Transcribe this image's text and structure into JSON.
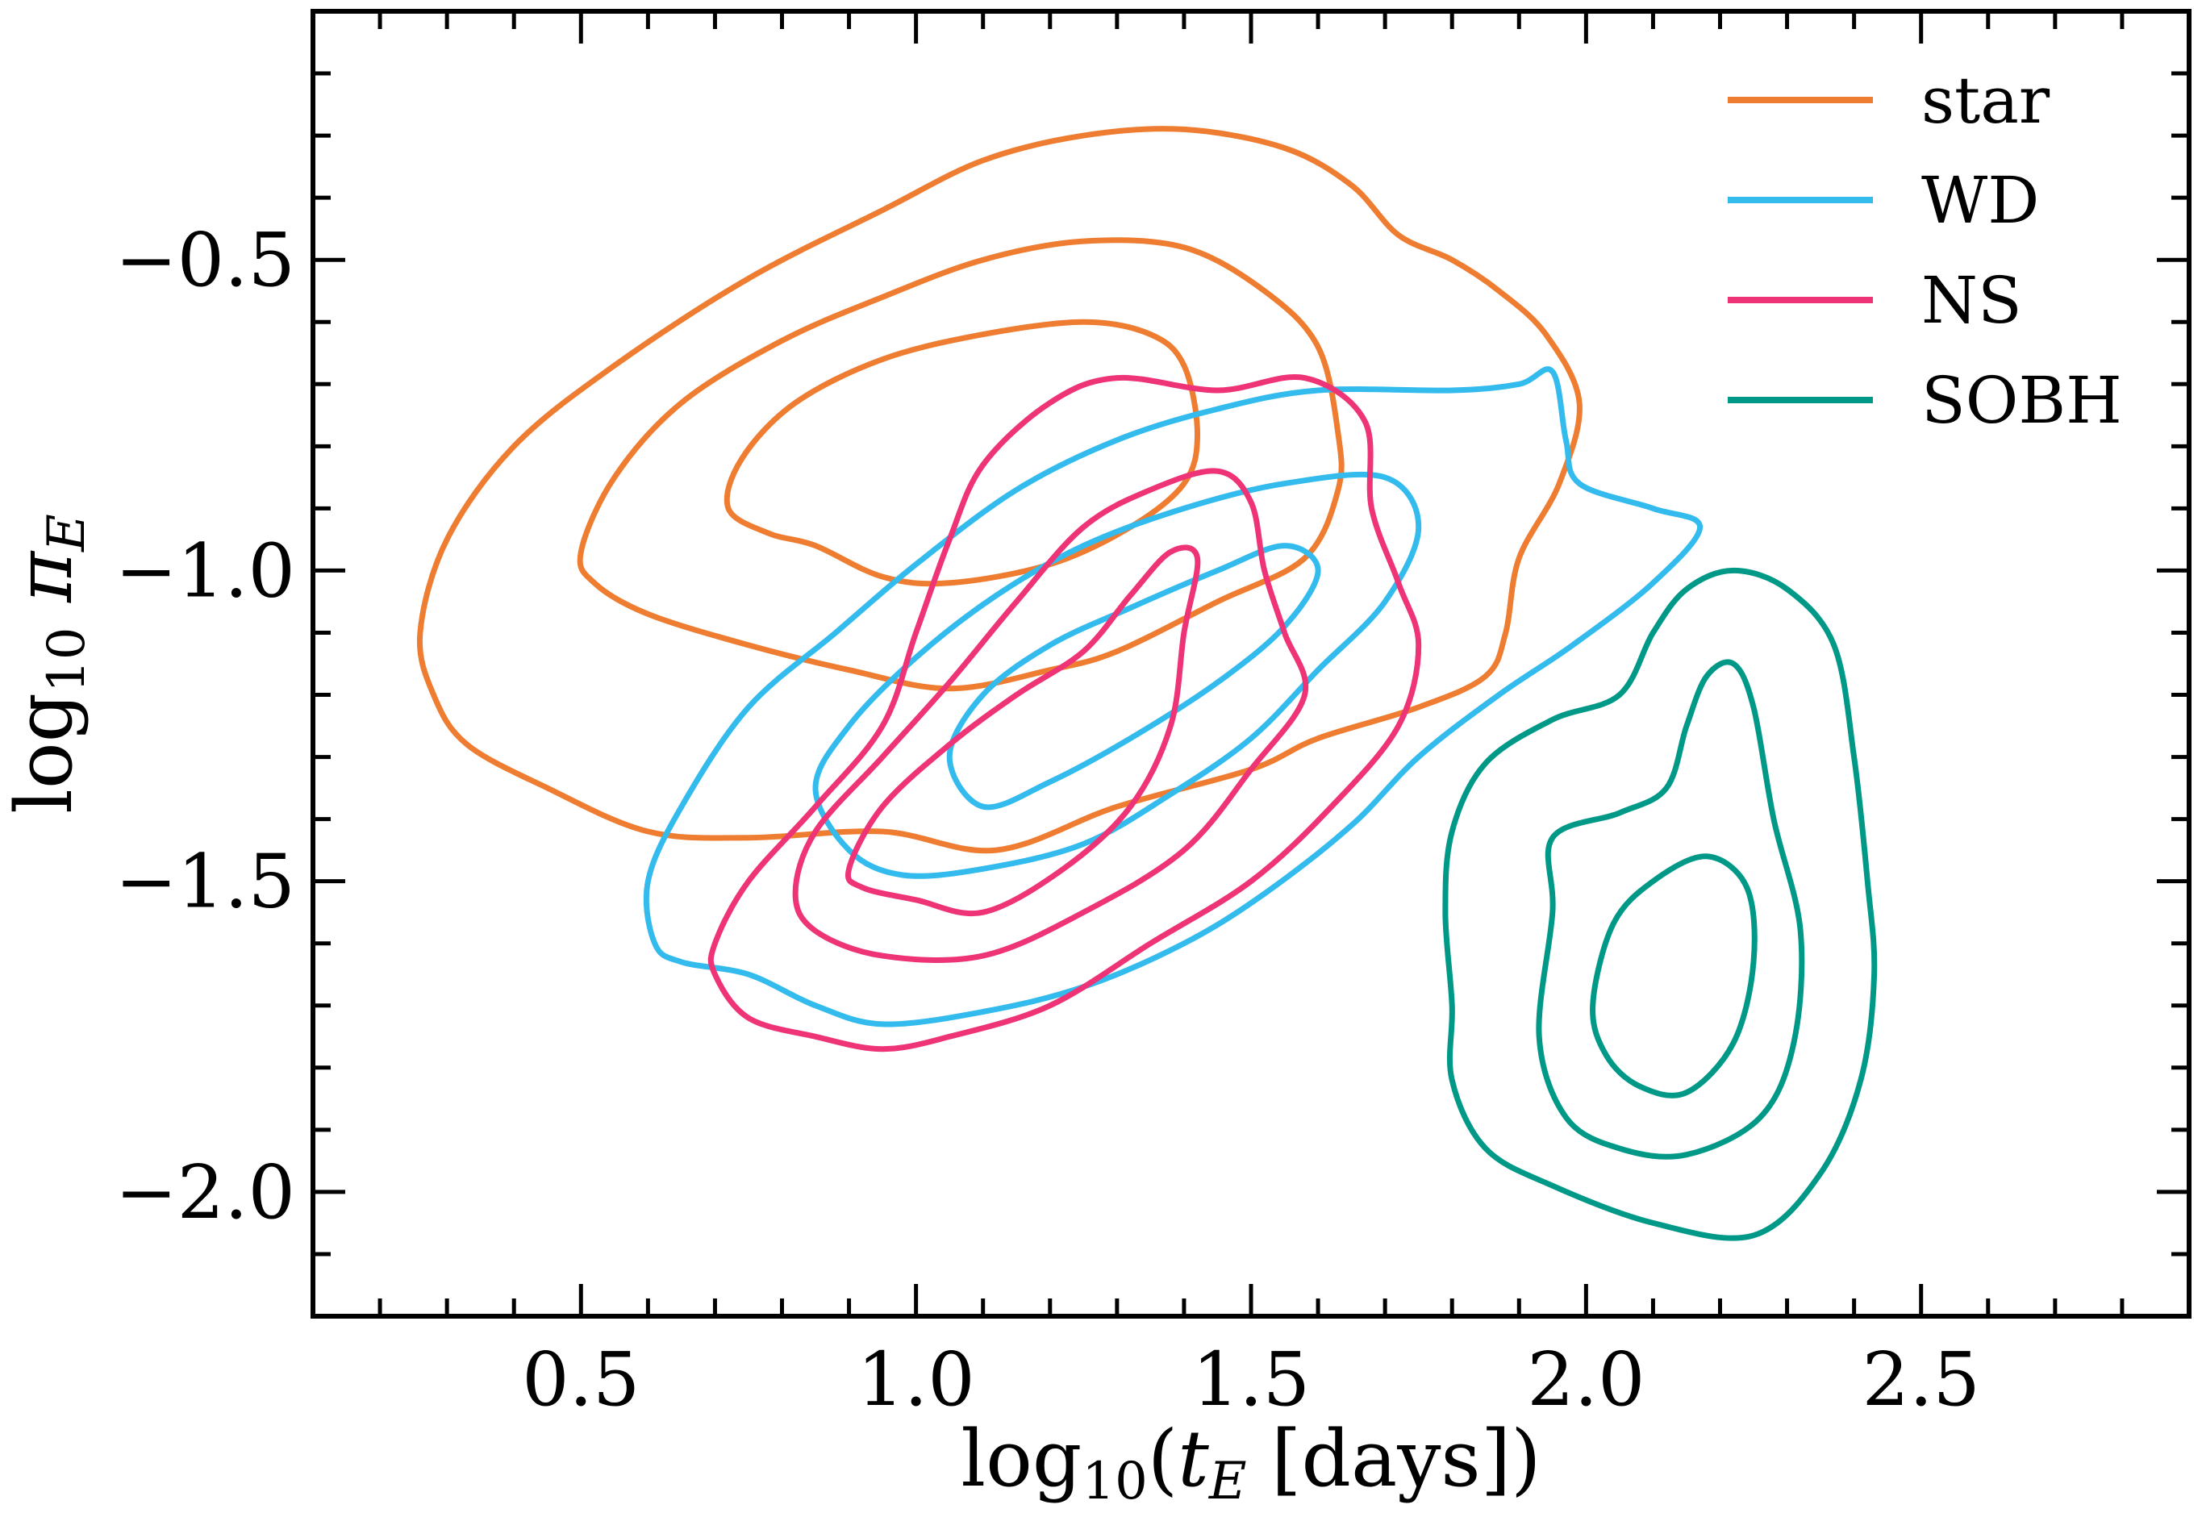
{
  "chart_data": {
    "type": "contour",
    "xlabel": "log10(tE [days])",
    "ylabel": "log10 πE",
    "xlim": [
      0.1,
      2.9
    ],
    "ylim": [
      -2.2,
      -0.1
    ],
    "xticks": [
      "0.5",
      "1.0",
      "1.5",
      "2.0",
      "2.5"
    ],
    "yticks": [
      "−0.5",
      "−1.0",
      "−1.5",
      "−2.0"
    ],
    "grid": false,
    "legend_position": "top-right",
    "series": [
      {
        "name": "star",
        "color": "#ee7d32",
        "contours": [
          [
            [
              0.26,
              -1.1
            ],
            [
              0.3,
              -0.95
            ],
            [
              0.4,
              -0.8
            ],
            [
              0.55,
              -0.67
            ],
            [
              0.75,
              -0.53
            ],
            [
              0.95,
              -0.42
            ],
            [
              1.1,
              -0.34
            ],
            [
              1.25,
              -0.3
            ],
            [
              1.4,
              -0.29
            ],
            [
              1.55,
              -0.32
            ],
            [
              1.65,
              -0.38
            ],
            [
              1.72,
              -0.46
            ],
            [
              1.8,
              -0.5
            ],
            [
              1.87,
              -0.55
            ],
            [
              1.94,
              -0.62
            ],
            [
              1.99,
              -0.73
            ],
            [
              1.96,
              -0.86
            ],
            [
              1.9,
              -0.98
            ],
            [
              1.88,
              -1.1
            ],
            [
              1.85,
              -1.17
            ],
            [
              1.75,
              -1.22
            ],
            [
              1.6,
              -1.27
            ],
            [
              1.5,
              -1.32
            ],
            [
              1.3,
              -1.38
            ],
            [
              1.12,
              -1.45
            ],
            [
              0.95,
              -1.42
            ],
            [
              0.75,
              -1.43
            ],
            [
              0.6,
              -1.42
            ],
            [
              0.45,
              -1.35
            ],
            [
              0.33,
              -1.28
            ],
            [
              0.28,
              -1.2
            ],
            [
              0.26,
              -1.1
            ]
          ],
          [
            [
              0.5,
              -0.97
            ],
            [
              0.55,
              -0.85
            ],
            [
              0.65,
              -0.73
            ],
            [
              0.8,
              -0.63
            ],
            [
              0.95,
              -0.56
            ],
            [
              1.1,
              -0.5
            ],
            [
              1.25,
              -0.47
            ],
            [
              1.4,
              -0.48
            ],
            [
              1.52,
              -0.55
            ],
            [
              1.6,
              -0.64
            ],
            [
              1.63,
              -0.78
            ],
            [
              1.63,
              -0.87
            ],
            [
              1.58,
              -0.98
            ],
            [
              1.45,
              -1.05
            ],
            [
              1.3,
              -1.13
            ],
            [
              1.2,
              -1.16
            ],
            [
              1.05,
              -1.19
            ],
            [
              0.9,
              -1.16
            ],
            [
              0.75,
              -1.12
            ],
            [
              0.6,
              -1.07
            ],
            [
              0.52,
              -1.02
            ],
            [
              0.5,
              -0.97
            ]
          ],
          [
            [
              0.72,
              -0.9
            ],
            [
              0.74,
              -0.82
            ],
            [
              0.82,
              -0.73
            ],
            [
              0.95,
              -0.66
            ],
            [
              1.1,
              -0.62
            ],
            [
              1.25,
              -0.6
            ],
            [
              1.35,
              -0.62
            ],
            [
              1.4,
              -0.67
            ],
            [
              1.42,
              -0.78
            ],
            [
              1.4,
              -0.86
            ],
            [
              1.32,
              -0.93
            ],
            [
              1.2,
              -0.99
            ],
            [
              1.05,
              -1.02
            ],
            [
              0.95,
              -1.01
            ],
            [
              0.85,
              -0.96
            ],
            [
              0.78,
              -0.94
            ],
            [
              0.72,
              -0.9
            ]
          ]
        ]
      },
      {
        "name": "WD",
        "color": "#33bbee",
        "contours": [
          [
            [
              0.6,
              -1.5
            ],
            [
              0.65,
              -1.38
            ],
            [
              0.75,
              -1.22
            ],
            [
              0.88,
              -1.1
            ],
            [
              1.0,
              -0.99
            ],
            [
              1.15,
              -0.87
            ],
            [
              1.3,
              -0.79
            ],
            [
              1.45,
              -0.74
            ],
            [
              1.6,
              -0.71
            ],
            [
              1.8,
              -0.71
            ],
            [
              1.9,
              -0.7
            ],
            [
              1.95,
              -0.68
            ],
            [
              1.97,
              -0.79
            ],
            [
              1.99,
              -0.86
            ],
            [
              2.1,
              -0.9
            ],
            [
              2.17,
              -0.93
            ],
            [
              2.1,
              -1.02
            ],
            [
              1.98,
              -1.12
            ],
            [
              1.87,
              -1.2
            ],
            [
              1.75,
              -1.3
            ],
            [
              1.65,
              -1.41
            ],
            [
              1.52,
              -1.52
            ],
            [
              1.4,
              -1.6
            ],
            [
              1.25,
              -1.67
            ],
            [
              1.1,
              -1.71
            ],
            [
              0.95,
              -1.73
            ],
            [
              0.85,
              -1.7
            ],
            [
              0.75,
              -1.65
            ],
            [
              0.65,
              -1.63
            ],
            [
              0.61,
              -1.6
            ],
            [
              0.6,
              -1.5
            ]
          ],
          [
            [
              0.85,
              -1.35
            ],
            [
              0.9,
              -1.25
            ],
            [
              1.0,
              -1.14
            ],
            [
              1.12,
              -1.04
            ],
            [
              1.25,
              -0.96
            ],
            [
              1.4,
              -0.9
            ],
            [
              1.55,
              -0.86
            ],
            [
              1.7,
              -0.85
            ],
            [
              1.75,
              -0.93
            ],
            [
              1.7,
              -1.05
            ],
            [
              1.6,
              -1.16
            ],
            [
              1.5,
              -1.27
            ],
            [
              1.38,
              -1.36
            ],
            [
              1.25,
              -1.44
            ],
            [
              1.1,
              -1.48
            ],
            [
              0.98,
              -1.49
            ],
            [
              0.9,
              -1.45
            ],
            [
              0.85,
              -1.35
            ]
          ],
          [
            [
              1.05,
              -1.3
            ],
            [
              1.1,
              -1.2
            ],
            [
              1.2,
              -1.12
            ],
            [
              1.32,
              -1.06
            ],
            [
              1.45,
              -1.0
            ],
            [
              1.55,
              -0.96
            ],
            [
              1.6,
              -1.0
            ],
            [
              1.55,
              -1.09
            ],
            [
              1.45,
              -1.18
            ],
            [
              1.32,
              -1.27
            ],
            [
              1.2,
              -1.34
            ],
            [
              1.1,
              -1.38
            ],
            [
              1.05,
              -1.3
            ]
          ]
        ]
      },
      {
        "name": "NS",
        "color": "#ee3377",
        "contours": [
          [
            [
              0.7,
              -1.6
            ],
            [
              0.75,
              -1.5
            ],
            [
              0.85,
              -1.38
            ],
            [
              0.95,
              -1.25
            ],
            [
              1.0,
              -1.1
            ],
            [
              1.05,
              -0.95
            ],
            [
              1.1,
              -0.83
            ],
            [
              1.2,
              -0.73
            ],
            [
              1.3,
              -0.69
            ],
            [
              1.45,
              -0.71
            ],
            [
              1.58,
              -0.69
            ],
            [
              1.67,
              -0.76
            ],
            [
              1.68,
              -0.9
            ],
            [
              1.72,
              -1.02
            ],
            [
              1.75,
              -1.12
            ],
            [
              1.72,
              -1.25
            ],
            [
              1.62,
              -1.38
            ],
            [
              1.5,
              -1.5
            ],
            [
              1.35,
              -1.6
            ],
            [
              1.2,
              -1.7
            ],
            [
              1.05,
              -1.75
            ],
            [
              0.95,
              -1.77
            ],
            [
              0.85,
              -1.75
            ],
            [
              0.75,
              -1.72
            ],
            [
              0.7,
              -1.65
            ],
            [
              0.7,
              -1.6
            ]
          ],
          [
            [
              0.82,
              -1.52
            ],
            [
              0.85,
              -1.42
            ],
            [
              0.95,
              -1.3
            ],
            [
              1.05,
              -1.18
            ],
            [
              1.15,
              -1.05
            ],
            [
              1.25,
              -0.93
            ],
            [
              1.35,
              -0.87
            ],
            [
              1.45,
              -0.84
            ],
            [
              1.5,
              -0.89
            ],
            [
              1.52,
              -1.0
            ],
            [
              1.55,
              -1.1
            ],
            [
              1.58,
              -1.2
            ],
            [
              1.5,
              -1.32
            ],
            [
              1.4,
              -1.45
            ],
            [
              1.25,
              -1.55
            ],
            [
              1.1,
              -1.62
            ],
            [
              0.95,
              -1.62
            ],
            [
              0.85,
              -1.58
            ],
            [
              0.82,
              -1.52
            ]
          ],
          [
            [
              0.9,
              -1.48
            ],
            [
              0.95,
              -1.38
            ],
            [
              1.05,
              -1.28
            ],
            [
              1.15,
              -1.2
            ],
            [
              1.25,
              -1.13
            ],
            [
              1.32,
              -1.04
            ],
            [
              1.38,
              -0.97
            ],
            [
              1.42,
              -0.98
            ],
            [
              1.4,
              -1.1
            ],
            [
              1.38,
              -1.25
            ],
            [
              1.32,
              -1.38
            ],
            [
              1.22,
              -1.48
            ],
            [
              1.1,
              -1.55
            ],
            [
              1.0,
              -1.53
            ],
            [
              0.92,
              -1.51
            ],
            [
              0.9,
              -1.48
            ]
          ]
        ]
      },
      {
        "name": "SOBH",
        "color": "#009988",
        "contours": [
          [
            [
              1.8,
              -1.7
            ],
            [
              1.79,
              -1.55
            ],
            [
              1.8,
              -1.42
            ],
            [
              1.85,
              -1.31
            ],
            [
              1.95,
              -1.24
            ],
            [
              2.05,
              -1.2
            ],
            [
              2.1,
              -1.1
            ],
            [
              2.15,
              -1.03
            ],
            [
              2.22,
              -1.0
            ],
            [
              2.3,
              -1.03
            ],
            [
              2.37,
              -1.12
            ],
            [
              2.4,
              -1.3
            ],
            [
              2.42,
              -1.5
            ],
            [
              2.43,
              -1.65
            ],
            [
              2.41,
              -1.82
            ],
            [
              2.35,
              -1.97
            ],
            [
              2.25,
              -2.07
            ],
            [
              2.1,
              -2.05
            ],
            [
              1.95,
              -1.99
            ],
            [
              1.85,
              -1.93
            ],
            [
              1.8,
              -1.82
            ],
            [
              1.8,
              -1.7
            ]
          ],
          [
            [
              1.93,
              -1.75
            ],
            [
              1.95,
              -1.55
            ],
            [
              1.95,
              -1.43
            ],
            [
              2.05,
              -1.39
            ],
            [
              2.12,
              -1.35
            ],
            [
              2.15,
              -1.25
            ],
            [
              2.18,
              -1.17
            ],
            [
              2.22,
              -1.15
            ],
            [
              2.25,
              -1.22
            ],
            [
              2.28,
              -1.4
            ],
            [
              2.32,
              -1.58
            ],
            [
              2.31,
              -1.76
            ],
            [
              2.26,
              -1.88
            ],
            [
              2.15,
              -1.94
            ],
            [
              2.05,
              -1.93
            ],
            [
              1.97,
              -1.88
            ],
            [
              1.93,
              -1.75
            ]
          ],
          [
            [
              2.01,
              -1.7
            ],
            [
              2.04,
              -1.57
            ],
            [
              2.1,
              -1.5
            ],
            [
              2.18,
              -1.46
            ],
            [
              2.24,
              -1.51
            ],
            [
              2.25,
              -1.63
            ],
            [
              2.22,
              -1.76
            ],
            [
              2.15,
              -1.84
            ],
            [
              2.08,
              -1.83
            ],
            [
              2.03,
              -1.78
            ],
            [
              2.01,
              -1.7
            ]
          ]
        ]
      }
    ]
  }
}
